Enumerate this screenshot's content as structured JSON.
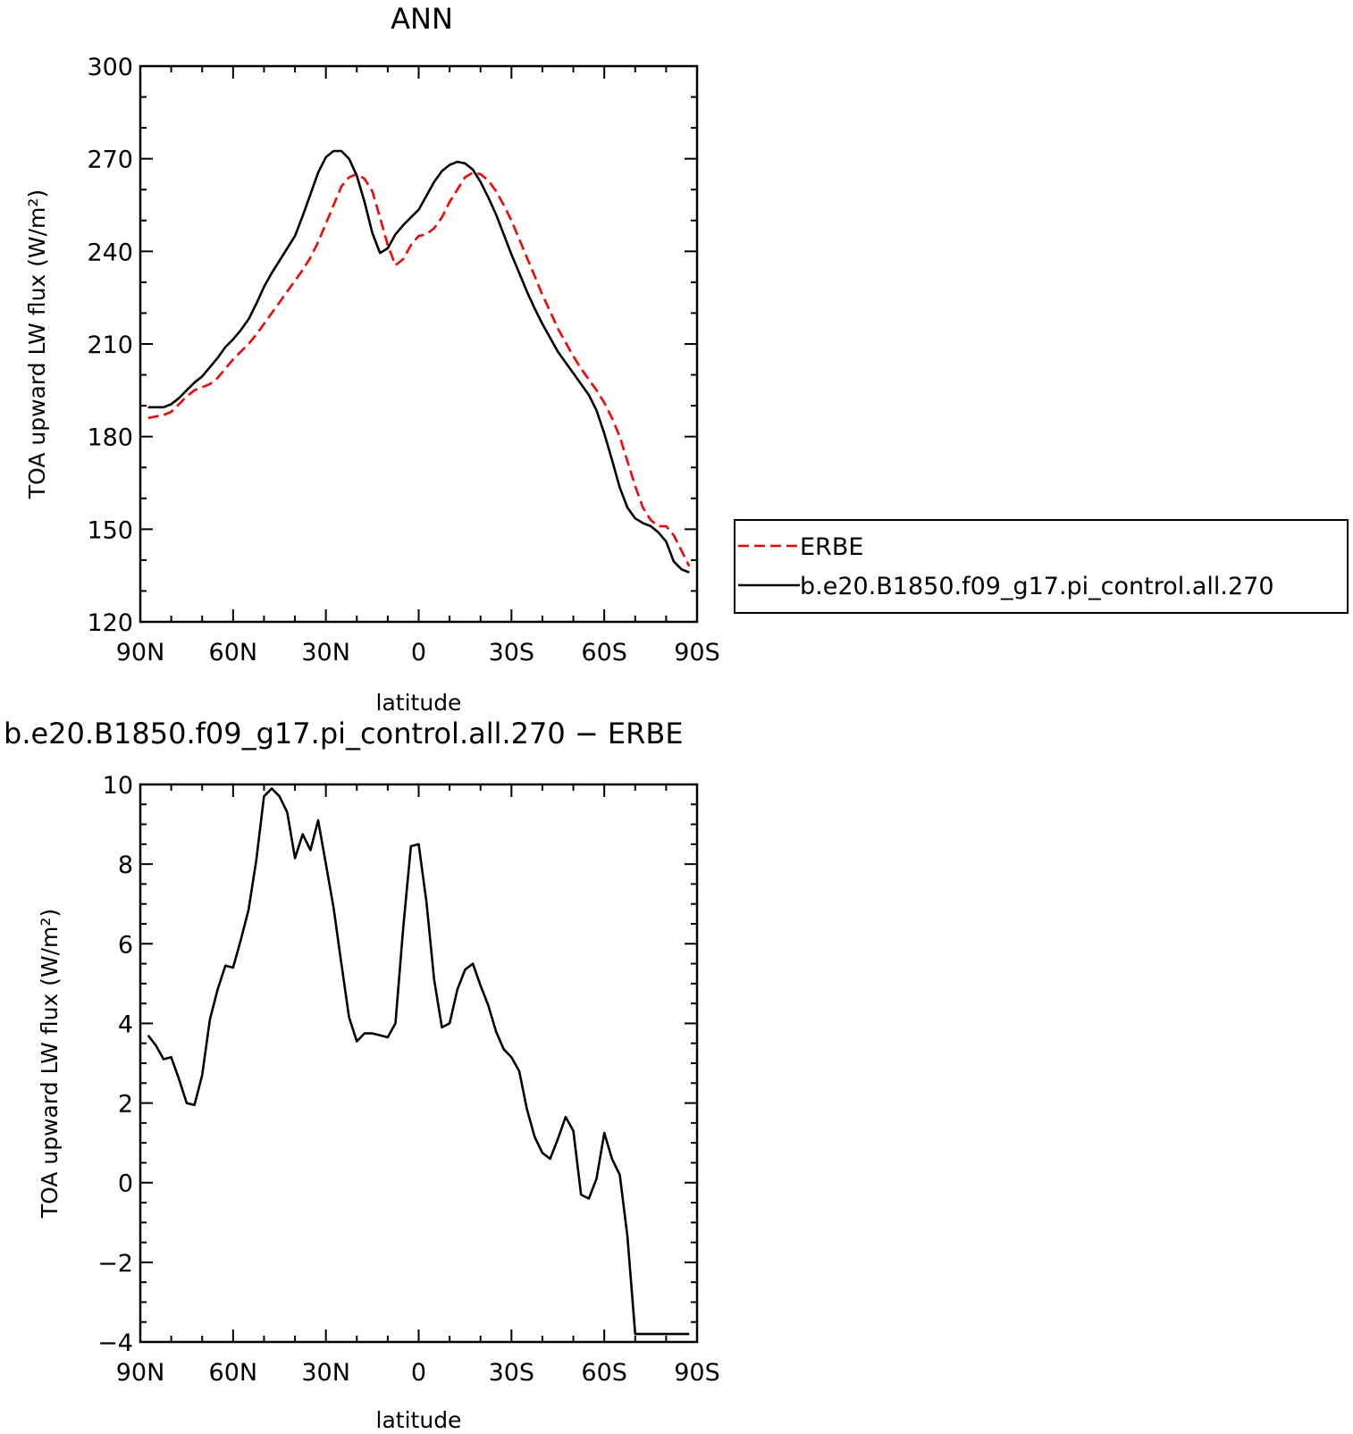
{
  "chart_data": [
    {
      "type": "line",
      "title": "ANN",
      "xlabel": "latitude",
      "ylabel": "TOA upward LW flux (W/m²)",
      "xlim": [
        90,
        -90
      ],
      "ylim": [
        120,
        300
      ],
      "yticks": [
        120,
        150,
        180,
        210,
        240,
        270,
        300
      ],
      "xticks": [
        {
          "value": 90,
          "label": "90N"
        },
        {
          "value": 60,
          "label": "60N"
        },
        {
          "value": 30,
          "label": "30N"
        },
        {
          "value": 0,
          "label": "0"
        },
        {
          "value": -30,
          "label": "30S"
        },
        {
          "value": -60,
          "label": "60S"
        },
        {
          "value": -90,
          "label": "90S"
        }
      ],
      "legend_position": "right",
      "series": [
        {
          "name": "ERBE",
          "color": "#ff0000",
          "style": "dashed",
          "x": [
            87.5,
            85,
            82.5,
            80,
            77.5,
            75,
            72.5,
            70,
            67.5,
            65,
            62.5,
            60,
            57.5,
            55,
            52.5,
            50,
            47.5,
            45,
            42.5,
            40,
            37.5,
            35,
            32.5,
            30,
            27.5,
            25,
            22.5,
            20,
            17.5,
            15,
            12.5,
            10,
            7.5,
            5,
            2.5,
            0,
            -2.5,
            -5,
            -7.5,
            -10,
            -12.5,
            -15,
            -17.5,
            -20,
            -22.5,
            -25,
            -27.5,
            -30,
            -32.5,
            -35,
            -37.5,
            -40,
            -42.5,
            -45,
            -47.5,
            -50,
            -52.5,
            -55,
            -57.5,
            -60,
            -62.5,
            -65,
            -67.5,
            -70,
            -72.5,
            -75,
            -77.5,
            -80,
            -82.5,
            -85,
            -87.5
          ],
          "y": [
            186,
            186.5,
            187,
            188,
            190.5,
            193,
            195,
            196,
            197,
            199,
            202,
            205,
            207.5,
            210,
            213,
            216.5,
            220,
            223.5,
            227,
            230.5,
            234,
            238,
            243,
            249,
            255,
            261,
            264,
            265,
            263.5,
            259.5,
            251,
            242,
            235.5,
            237.5,
            242,
            245,
            245.5,
            247.5,
            251,
            256,
            260,
            264,
            265.5,
            265,
            263,
            259.5,
            255,
            250,
            244,
            238,
            232,
            226,
            220.5,
            215,
            210.5,
            206,
            202,
            198.5,
            195,
            191,
            186,
            180,
            172,
            164,
            157,
            153,
            151,
            151,
            148,
            143,
            138
          ]
        },
        {
          "name": "b.e20.B1850.f09_g17.pi_control.all.270",
          "color": "#000000",
          "style": "solid",
          "x": [
            87.5,
            85,
            82.5,
            80,
            77.5,
            75,
            72.5,
            70,
            67.5,
            65,
            62.5,
            60,
            57.5,
            55,
            52.5,
            50,
            47.5,
            45,
            42.5,
            40,
            37.5,
            35,
            32.5,
            30,
            27.5,
            25,
            22.5,
            20,
            17.5,
            15,
            12.5,
            10,
            7.5,
            5,
            2.5,
            0,
            -2.5,
            -5,
            -7.5,
            -10,
            -12.5,
            -15,
            -17.5,
            -20,
            -22.5,
            -25,
            -27.5,
            -30,
            -32.5,
            -35,
            -37.5,
            -40,
            -42.5,
            -45,
            -47.5,
            -50,
            -52.5,
            -55,
            -57.5,
            -60,
            -62.5,
            -65,
            -67.5,
            -70,
            -72.5,
            -75,
            -77.5,
            -80,
            -82.5,
            -85,
            -87.5
          ],
          "y": [
            189.5,
            189.5,
            189.5,
            190.5,
            192.5,
            195,
            197.5,
            199.5,
            202.5,
            205.5,
            209,
            211.5,
            214.5,
            218,
            223,
            228.5,
            233,
            237,
            241,
            245,
            251.5,
            258.5,
            265.5,
            270.5,
            272.5,
            272.5,
            270,
            264.5,
            256,
            246,
            239.5,
            241,
            245.5,
            248.5,
            251,
            253.5,
            258,
            262.5,
            266,
            268,
            269,
            268.5,
            266.5,
            262.5,
            257.5,
            252,
            245.5,
            239,
            233,
            227,
            221.5,
            216.5,
            212,
            207.5,
            204,
            200.5,
            197,
            193.5,
            188.5,
            181,
            172.5,
            163.5,
            157,
            153.5,
            152,
            151,
            149,
            146,
            139.5,
            137,
            136
          ]
        }
      ]
    },
    {
      "type": "line",
      "title": "b.e20.B1850.f09_g17.pi_control.all.270 − ERBE",
      "xlabel": "latitude",
      "ylabel": "TOA upward LW flux (W/m²)",
      "xlim": [
        90,
        -90
      ],
      "ylim": [
        -4,
        10
      ],
      "yticks": [
        -4,
        -2,
        0,
        2,
        4,
        6,
        8,
        10
      ],
      "xticks": [
        {
          "value": 90,
          "label": "90N"
        },
        {
          "value": 60,
          "label": "60N"
        },
        {
          "value": 30,
          "label": "30N"
        },
        {
          "value": 0,
          "label": "0"
        },
        {
          "value": -30,
          "label": "30S"
        },
        {
          "value": -60,
          "label": "60S"
        },
        {
          "value": -90,
          "label": "90S"
        }
      ],
      "series": [
        {
          "color": "#000000",
          "style": "solid",
          "x": [
            87.5,
            85,
            82.5,
            80,
            77.5,
            75,
            72.5,
            70,
            67.5,
            65,
            62.5,
            60,
            57.5,
            55,
            52.5,
            50,
            47.5,
            45,
            42.5,
            40,
            37.5,
            35,
            32.5,
            30,
            27.5,
            25,
            22.5,
            20,
            17.5,
            15,
            12.5,
            10,
            7.5,
            5,
            2.5,
            0,
            -2.5,
            -5,
            -7.5,
            -10,
            -12.5,
            -15,
            -17.5,
            -20,
            -22.5,
            -25,
            -27.5,
            -30,
            -32.5,
            -35,
            -37.5,
            -40,
            -42.5,
            -45,
            -47.5,
            -50,
            -52.5,
            -55,
            -57.5,
            -60,
            -62.5,
            -65,
            -67.5,
            -70,
            -72.5,
            -75,
            -77.5,
            -80,
            -82.5,
            -85,
            -87.5
          ],
          "y": [
            3.7,
            3.45,
            3.1,
            3.15,
            2.6,
            2.0,
            1.95,
            2.7,
            4.1,
            4.85,
            5.45,
            5.4,
            6.1,
            6.85,
            8.1,
            9.7,
            9.9,
            9.7,
            9.3,
            8.15,
            8.75,
            8.35,
            9.1,
            8.0,
            6.9,
            5.5,
            4.15,
            3.55,
            3.75,
            3.75,
            3.7,
            3.65,
            4.0,
            6.4,
            8.45,
            8.5,
            7.05,
            5.1,
            3.9,
            4.0,
            4.85,
            5.35,
            5.5,
            4.95,
            4.45,
            3.8,
            3.35,
            3.15,
            2.8,
            1.85,
            1.15,
            0.75,
            0.6,
            1.1,
            1.65,
            1.3,
            -0.3,
            -0.4,
            0.1,
            1.25,
            0.6,
            0.2,
            -1.35,
            -3.8,
            -3.8,
            -3.8,
            -3.8,
            -3.8,
            -3.8,
            -3.8,
            -3.8
          ]
        }
      ]
    }
  ]
}
